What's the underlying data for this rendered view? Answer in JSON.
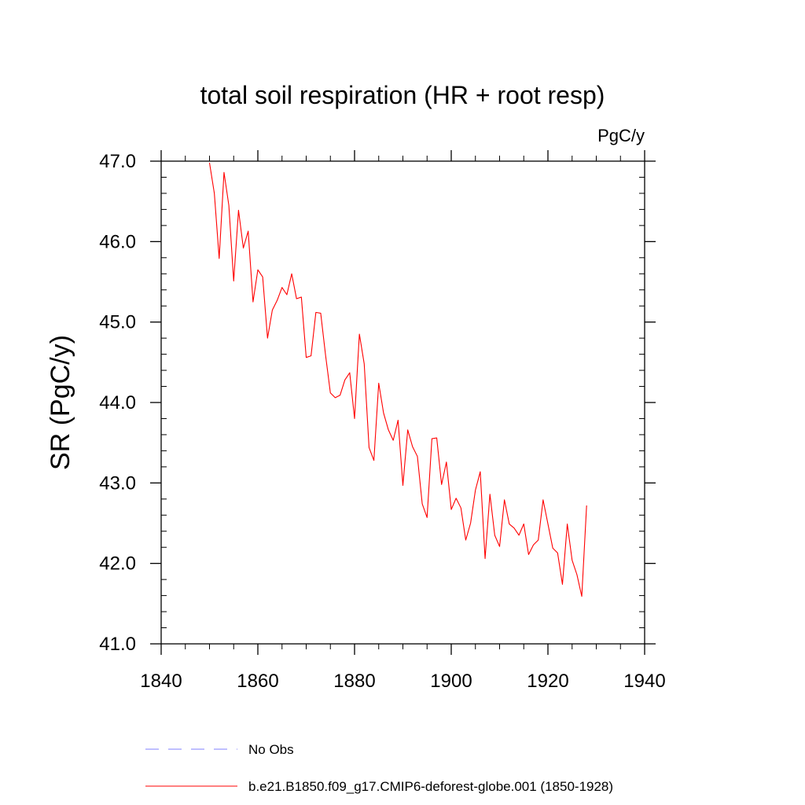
{
  "chart_data": {
    "type": "line",
    "title": "total soil respiration (HR + root resp)",
    "units_label": "PgC/y",
    "xlabel": "",
    "ylabel": "SR  (PgC/y)",
    "xlim": [
      1840,
      1940
    ],
    "ylim": [
      41.0,
      47.0
    ],
    "x_ticks": [
      1840,
      1860,
      1880,
      1900,
      1920,
      1940
    ],
    "x_tick_labels": [
      "1840",
      "1860",
      "1880",
      "1900",
      "1920",
      "1940"
    ],
    "y_ticks": [
      41.0,
      42.0,
      43.0,
      44.0,
      45.0,
      46.0,
      47.0
    ],
    "y_tick_labels": [
      "41.0",
      "42.0",
      "43.0",
      "44.0",
      "45.0",
      "46.0",
      "47.0"
    ],
    "series": [
      {
        "name": "b.e21.B1850.f09_g17.CMIP6-deforest-globe.001 (1850-1928)",
        "color": "#ff0000",
        "style": "solid",
        "x": [
          1850,
          1851,
          1852,
          1853,
          1854,
          1855,
          1856,
          1857,
          1858,
          1859,
          1860,
          1861,
          1862,
          1863,
          1864,
          1865,
          1866,
          1867,
          1868,
          1869,
          1870,
          1871,
          1872,
          1873,
          1874,
          1875,
          1876,
          1877,
          1878,
          1879,
          1880,
          1881,
          1882,
          1883,
          1884,
          1885,
          1886,
          1887,
          1888,
          1889,
          1890,
          1891,
          1892,
          1893,
          1894,
          1895,
          1896,
          1897,
          1898,
          1899,
          1900,
          1901,
          1902,
          1903,
          1904,
          1905,
          1906,
          1907,
          1908,
          1909,
          1910,
          1911,
          1912,
          1913,
          1914,
          1915,
          1916,
          1917,
          1918,
          1919,
          1920,
          1921,
          1922,
          1923,
          1924,
          1925,
          1926,
          1927,
          1928
        ],
        "values": [
          46.98,
          46.6,
          45.79,
          46.86,
          46.45,
          45.51,
          46.39,
          45.92,
          46.13,
          45.25,
          45.65,
          45.56,
          44.8,
          45.15,
          45.27,
          45.43,
          45.34,
          45.6,
          45.29,
          45.31,
          44.56,
          44.58,
          45.12,
          45.11,
          44.59,
          44.12,
          44.06,
          44.09,
          44.28,
          44.37,
          43.8,
          44.85,
          44.48,
          43.44,
          43.28,
          44.24,
          43.87,
          43.66,
          43.53,
          43.78,
          42.97,
          43.66,
          43.45,
          43.33,
          42.74,
          42.57,
          43.55,
          43.56,
          42.98,
          43.26,
          42.67,
          42.81,
          42.69,
          42.29,
          42.5,
          42.91,
          43.14,
          42.06,
          42.86,
          42.35,
          42.21,
          42.79,
          42.49,
          42.44,
          42.35,
          42.49,
          42.11,
          42.23,
          42.29,
          42.79,
          42.49,
          42.19,
          42.13,
          41.74,
          42.49,
          42.04,
          41.86,
          41.59,
          42.72
        ]
      }
    ],
    "legend": [
      {
        "label": "No Obs",
        "color": "#7f7fff",
        "style": "dashed"
      },
      {
        "label": "b.e21.B1850.f09_g17.CMIP6-deforest-globe.001 (1850-1928)",
        "color": "#ff0000",
        "style": "solid"
      }
    ]
  }
}
